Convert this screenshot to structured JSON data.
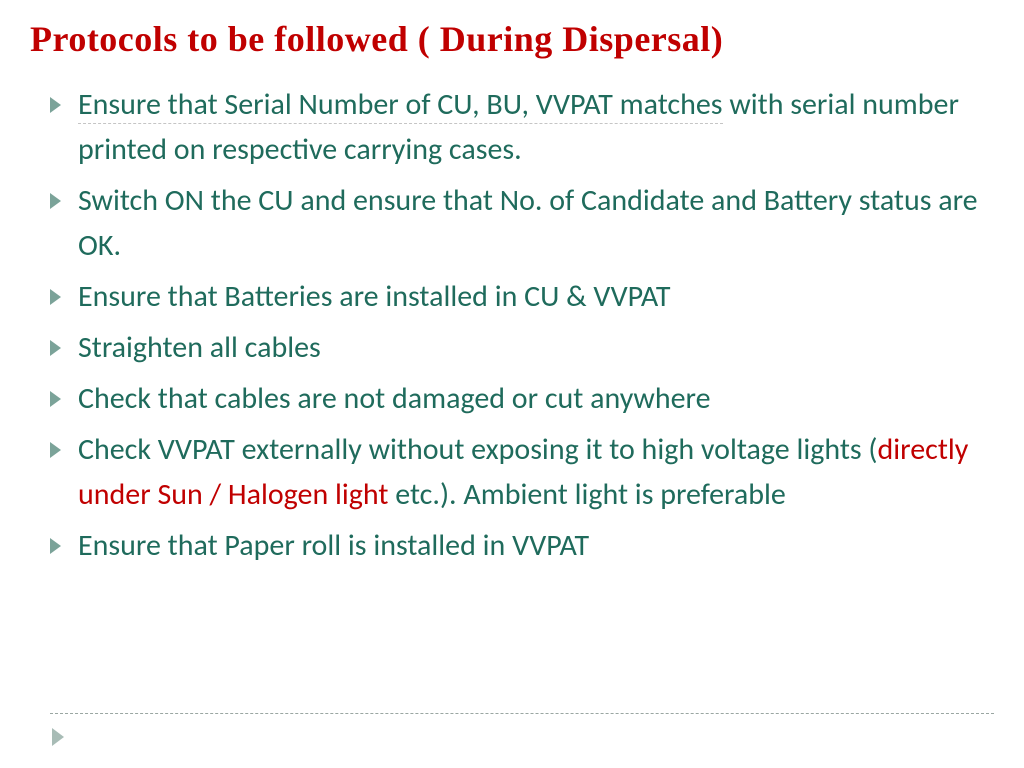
{
  "title": "Protocols to be followed ( During Dispersal)",
  "colors": {
    "title": "#c00000",
    "body_text": "#1f6b5c",
    "highlight": "#c00000",
    "bullet": "#7ba399",
    "divider": "#9aa6a2",
    "background": "#ffffff"
  },
  "font_sizes": {
    "title": 36,
    "body": 30
  },
  "bullets": [
    {
      "segments": [
        {
          "text": "Ensure that  Serial Number of CU, BU, VVPAT matches",
          "underlined": true
        },
        {
          "text": " with serial number printed on respective carrying  cases."
        }
      ]
    },
    {
      "segments": [
        {
          "text": "Switch ON the CU and ensure that No. of Candidate and Battery status are OK."
        }
      ]
    },
    {
      "segments": [
        {
          "text": "Ensure that Batteries are installed in CU & VVPAT"
        }
      ]
    },
    {
      "segments": [
        {
          "text": "Straighten all cables"
        }
      ]
    },
    {
      "segments": [
        {
          "text": "Check that cables are not damaged or cut anywhere"
        }
      ]
    },
    {
      "segments": [
        {
          "text": "Check VVPAT externally without exposing it to high voltage lights ("
        },
        {
          "text": "directly under Sun / Halogen light",
          "highlight": true
        },
        {
          "text": " etc.). Ambient light is preferable"
        }
      ]
    },
    {
      "segments": [
        {
          "text": "Ensure that Paper roll is installed in VVPAT"
        }
      ]
    }
  ]
}
